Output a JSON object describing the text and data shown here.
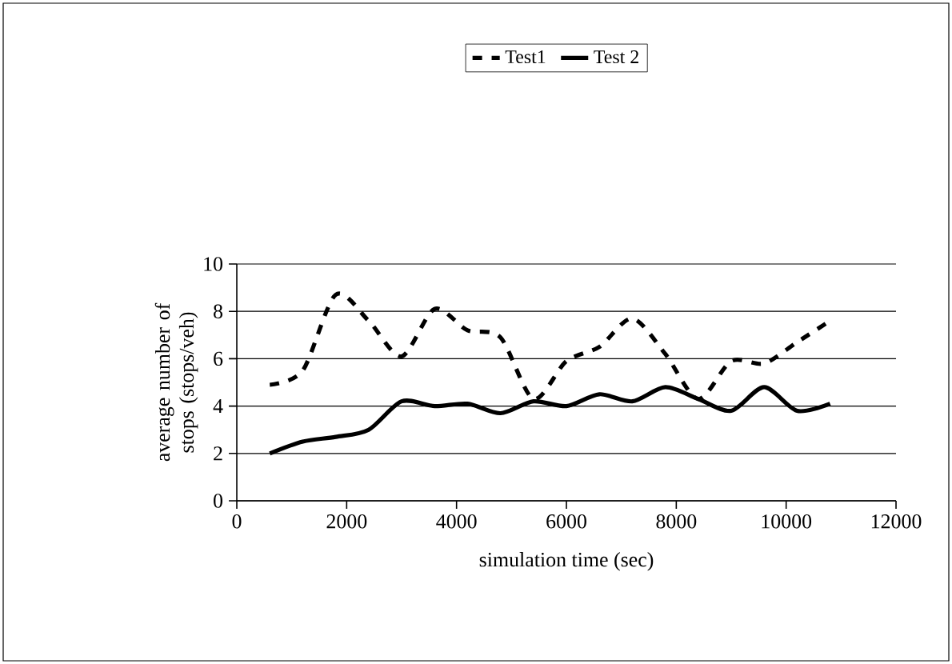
{
  "chart_data": {
    "type": "line",
    "xlabel": "simulation time (sec)",
    "ylabel": "average number of stops (stops/veh)",
    "x": [
      600,
      1200,
      1800,
      2400,
      3000,
      3600,
      4200,
      4800,
      5400,
      6000,
      6600,
      7200,
      7800,
      8400,
      9000,
      9600,
      10200,
      10800
    ],
    "series": [
      {
        "name": "Test1",
        "color": "#000000",
        "line_style": "dashed",
        "values": [
          4.9,
          5.5,
          8.7,
          7.6,
          6.1,
          8.1,
          7.2,
          6.9,
          4.3,
          5.9,
          6.5,
          7.7,
          6.2,
          4.3,
          5.9,
          5.8,
          6.7,
          7.6
        ]
      },
      {
        "name": "Test 2",
        "color": "#000000",
        "line_style": "solid",
        "values": [
          2.0,
          2.5,
          2.7,
          3.0,
          4.2,
          4.0,
          4.1,
          3.7,
          4.2,
          4.0,
          4.5,
          4.2,
          4.8,
          4.3,
          3.8,
          4.8,
          3.8,
          4.1
        ]
      }
    ],
    "xlim": [
      0,
      12000
    ],
    "xticks": [
      0,
      2000,
      4000,
      6000,
      8000,
      10000,
      12000
    ],
    "ylim": [
      0,
      10
    ],
    "yticks": [
      0,
      2,
      4,
      6,
      8,
      10
    ],
    "grid": "y",
    "legend": "top",
    "marker": "none"
  }
}
